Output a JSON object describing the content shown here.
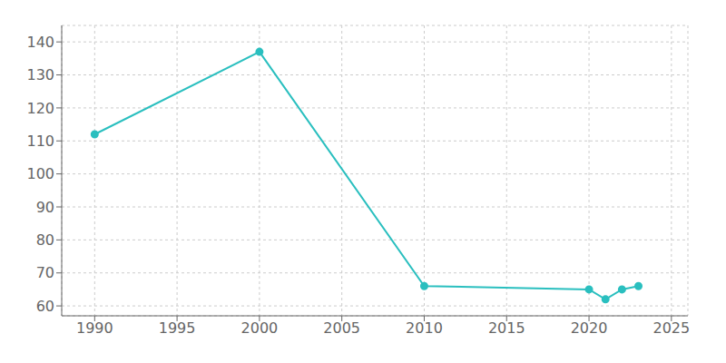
{
  "chart_data": {
    "type": "line",
    "x": [
      1990,
      2000,
      2010,
      2020,
      2021,
      2022,
      2023
    ],
    "values": [
      112,
      137,
      66,
      65,
      62,
      65,
      66
    ],
    "color": "#2abfbf",
    "marker": "circle",
    "xlim": [
      1988,
      2026
    ],
    "ylim": [
      57,
      145
    ],
    "xticks": [
      1990,
      1995,
      2000,
      2005,
      2010,
      2015,
      2020,
      2025
    ],
    "yticks": [
      60,
      70,
      80,
      90,
      100,
      110,
      120,
      130,
      140
    ],
    "grid": true
  }
}
